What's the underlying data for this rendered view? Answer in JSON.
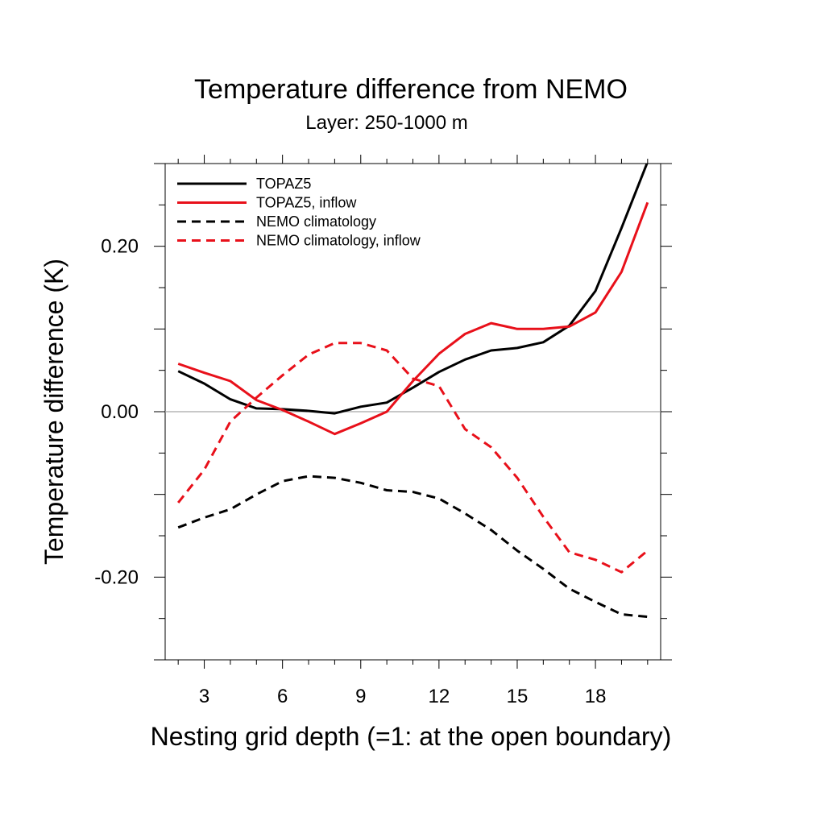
{
  "chart_data": {
    "type": "line",
    "title": "Temperature difference from NEMO",
    "subtitle": "Layer: 250-1000 m",
    "xlabel": "Nesting grid depth (=1: at the open boundary)",
    "ylabel": "Temperature difference (K)",
    "xlim": [
      1.5,
      20.5
    ],
    "ylim": [
      -0.3,
      0.3
    ],
    "x_ticks": [
      3,
      6,
      9,
      12,
      15,
      18
    ],
    "x_tick_labels": [
      "3",
      "6",
      "9",
      "12",
      "15",
      "18"
    ],
    "y_ticks": [
      -0.2,
      0.0,
      0.2
    ],
    "y_tick_labels": [
      "-0.20",
      "0.00",
      "0.20"
    ],
    "reference_line": 0.0,
    "grid": false,
    "legend_position": "top-left",
    "x": [
      2,
      3,
      4,
      5,
      6,
      7,
      8,
      9,
      10,
      11,
      12,
      13,
      14,
      15,
      16,
      17,
      18,
      19,
      20
    ],
    "series": [
      {
        "name": "TOPAZ5",
        "color": "#000000",
        "dash": "solid",
        "values": [
          0.049,
          0.034,
          0.015,
          0.004,
          0.003,
          0.001,
          -0.002,
          0.006,
          0.011,
          0.029,
          0.048,
          0.063,
          0.074,
          0.077,
          0.084,
          0.104,
          0.146,
          0.222,
          0.302
        ]
      },
      {
        "name": "TOPAZ5, inflow",
        "color": "#e8101a",
        "dash": "solid",
        "values": [
          0.058,
          0.047,
          0.037,
          0.014,
          0.002,
          -0.012,
          -0.027,
          -0.014,
          0.0,
          0.037,
          0.07,
          0.094,
          0.107,
          0.1,
          0.1,
          0.103,
          0.12,
          0.169,
          0.253
        ]
      },
      {
        "name": "NEMO climatology",
        "color": "#000000",
        "dash": "dashed",
        "values": [
          -0.14,
          -0.128,
          -0.118,
          -0.1,
          -0.084,
          -0.078,
          -0.08,
          -0.086,
          -0.095,
          -0.097,
          -0.105,
          -0.123,
          -0.143,
          -0.168,
          -0.19,
          -0.214,
          -0.23,
          -0.245,
          -0.248
        ]
      },
      {
        "name": "NEMO climatology, inflow",
        "color": "#e8101a",
        "dash": "dashed",
        "values": [
          -0.11,
          -0.07,
          -0.012,
          0.017,
          0.044,
          0.069,
          0.083,
          0.083,
          0.074,
          0.04,
          0.031,
          -0.021,
          -0.043,
          -0.08,
          -0.127,
          -0.17,
          -0.179,
          -0.194,
          -0.168
        ]
      }
    ]
  }
}
